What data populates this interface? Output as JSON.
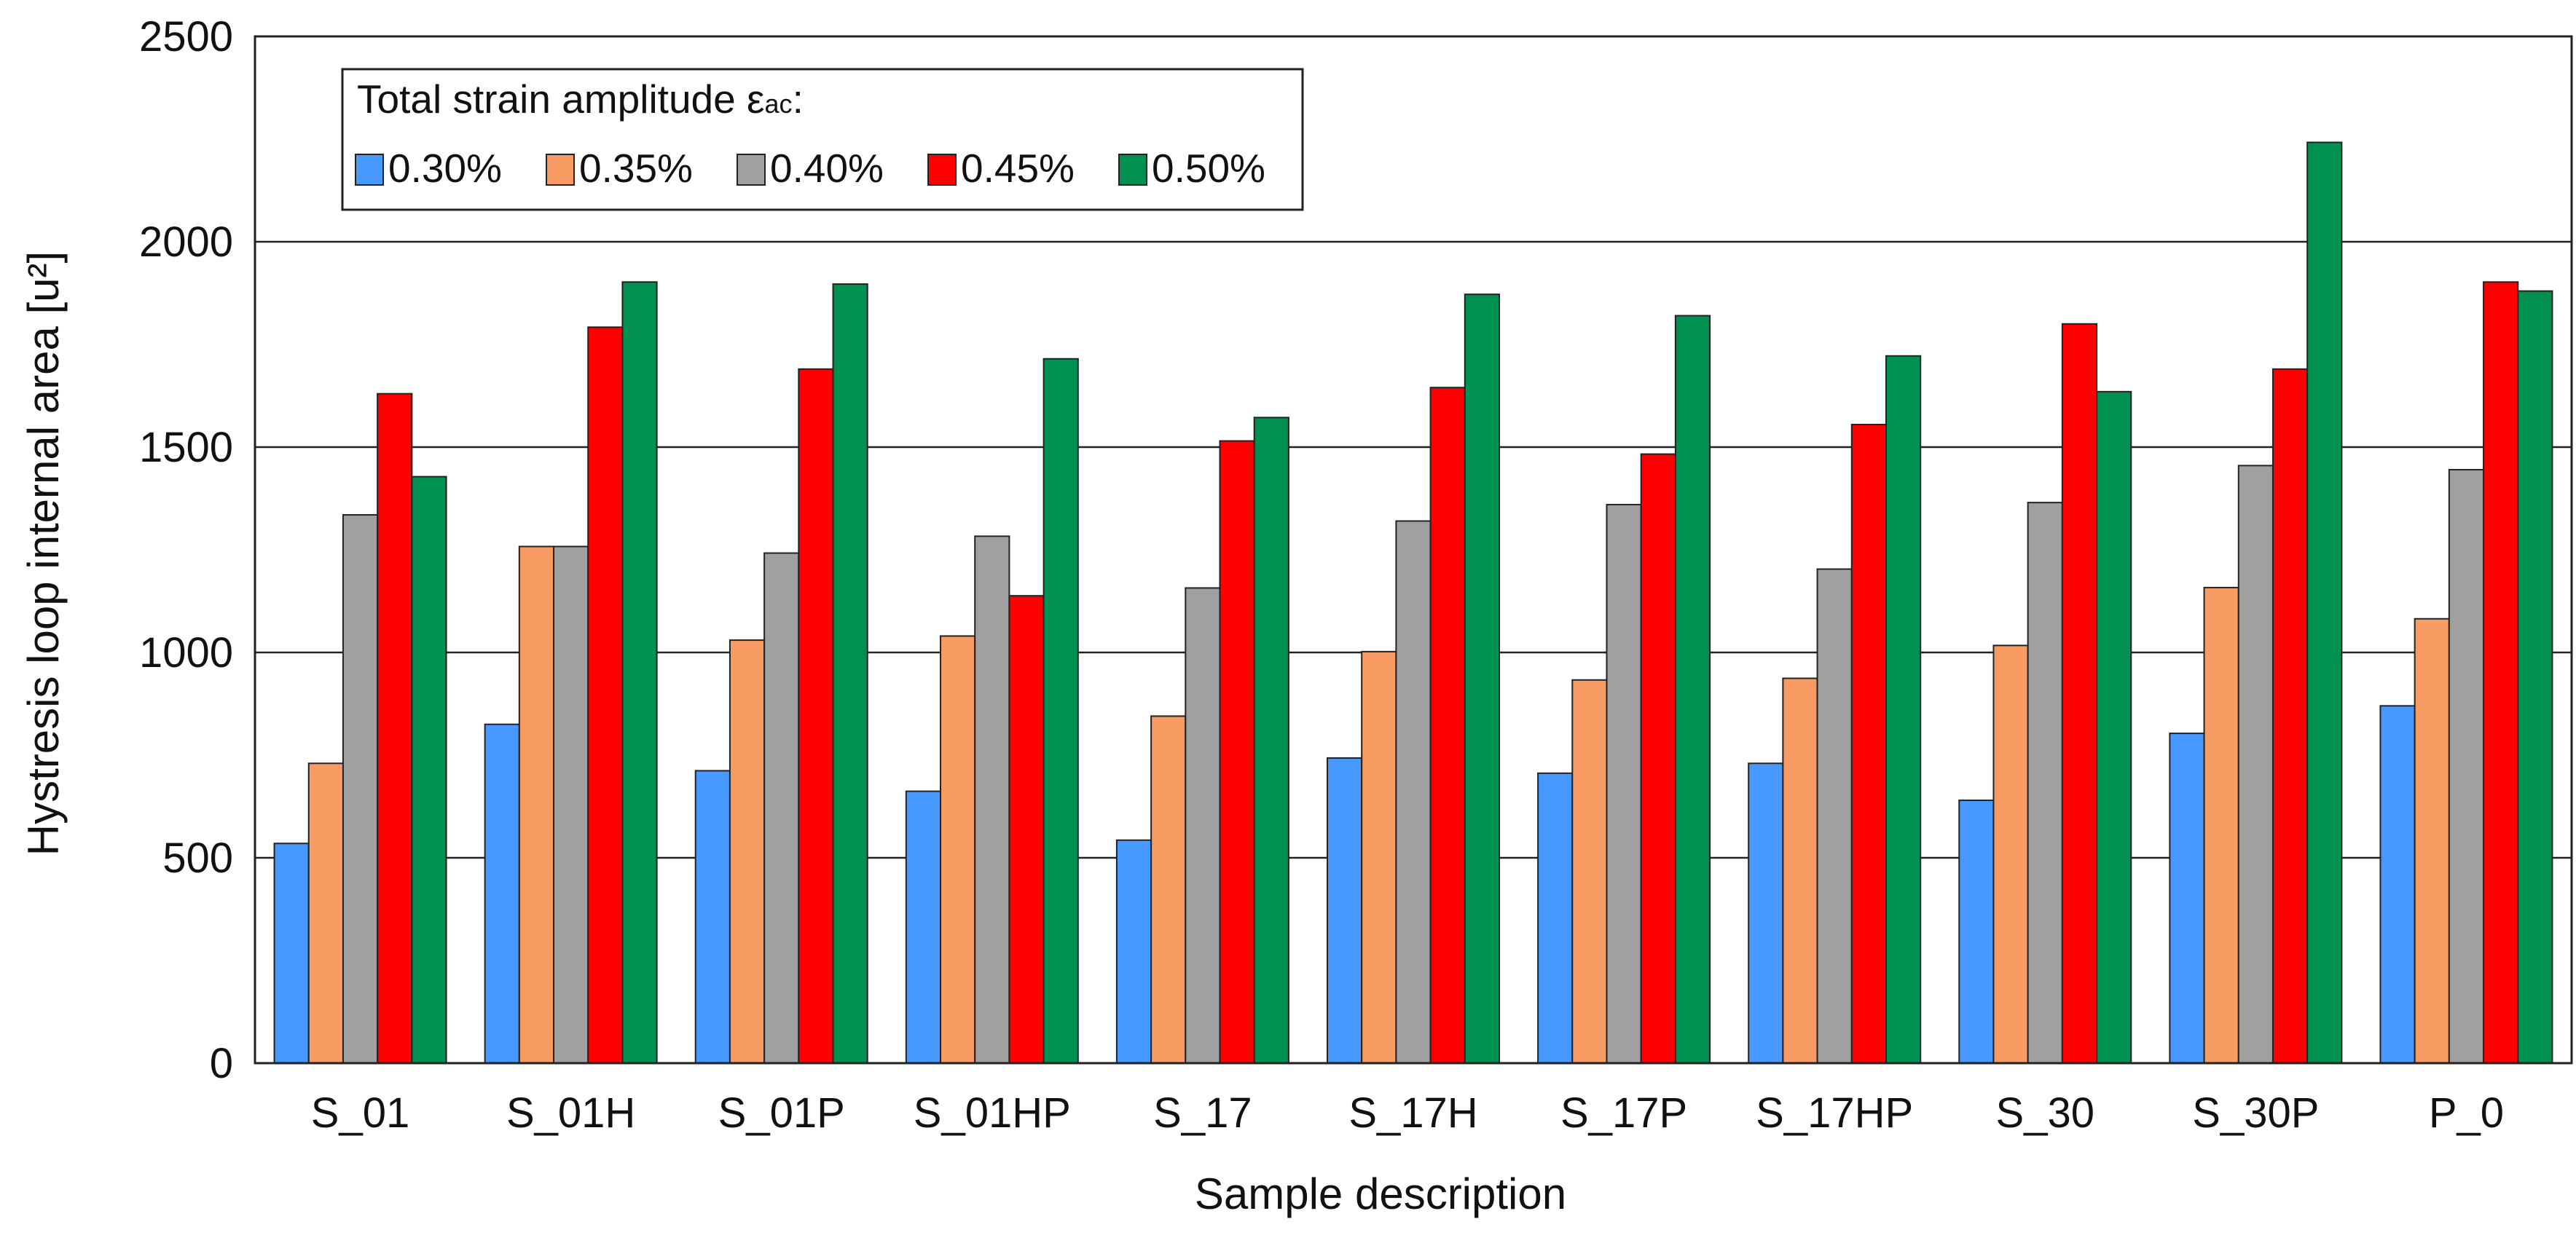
{
  "chart_data": {
    "type": "bar",
    "title": "",
    "xlabel": "Sample description",
    "ylabel": "Hystresis loop internal area  [u²]",
    "ylim": [
      0,
      2500
    ],
    "yticks": [
      0,
      500,
      1000,
      1500,
      2000,
      2500
    ],
    "ytick_labels": [
      "0",
      "500",
      "1000",
      "1500",
      "2000",
      "2500"
    ],
    "grid": "horizontal",
    "legend_position": "top-left",
    "legend": {
      "title_main": "Total strain amplitude ",
      "title_symbol": "ε",
      "title_subscript": "ac",
      "title_suffix": ":"
    },
    "categories": [
      "S_01",
      "S_01H",
      "S_01P",
      "S_01HP",
      "S_17",
      "S_17H",
      "S_17P",
      "S_17HP",
      "S_30",
      "S_30P",
      "P_0"
    ],
    "series": [
      {
        "name": "0.30%",
        "color": "#4799FF",
        "values": [
          535,
          825,
          712,
          662,
          543,
          743,
          706,
          730,
          640,
          803,
          870
        ]
      },
      {
        "name": "0.35%",
        "color": "#F79B63",
        "values": [
          730,
          1258,
          1030,
          1040,
          845,
          1002,
          933,
          937,
          1017,
          1158,
          1082
        ]
      },
      {
        "name": "0.40%",
        "color": "#A0A0A0",
        "values": [
          1335,
          1258,
          1242,
          1283,
          1157,
          1320,
          1360,
          1203,
          1365,
          1455,
          1445
        ]
      },
      {
        "name": "0.45%",
        "color": "#FF0000",
        "values": [
          1630,
          1792,
          1690,
          1138,
          1515,
          1645,
          1483,
          1555,
          1800,
          1690,
          1902
        ]
      },
      {
        "name": "0.50%",
        "color": "#009150",
        "values": [
          1428,
          1902,
          1897,
          1715,
          1572,
          1872,
          1820,
          1722,
          1635,
          2242,
          1880
        ]
      }
    ]
  }
}
